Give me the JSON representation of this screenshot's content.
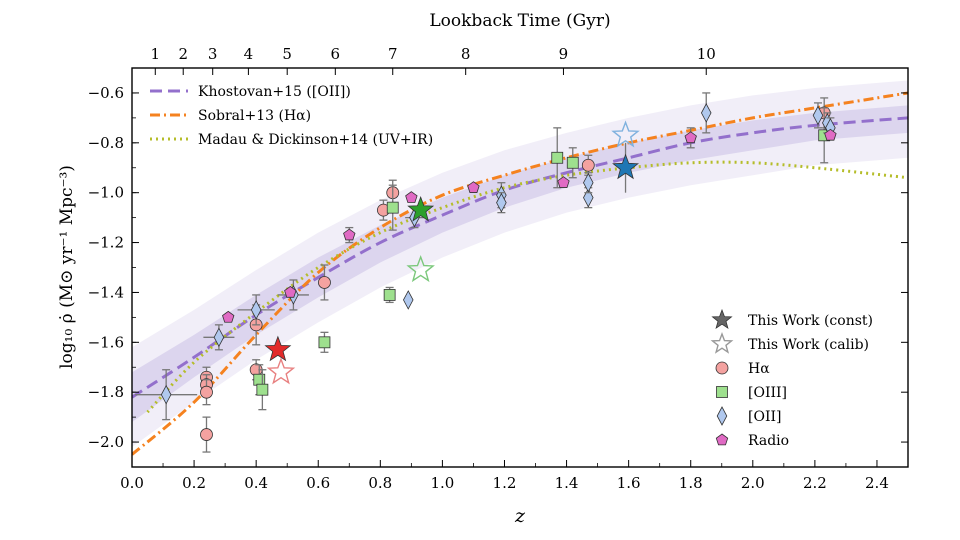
{
  "chart_data": {
    "type": "scatter",
    "xlabel": "z",
    "ylabel": "log₁₀ ρ̇ (M⊙ yr⁻¹ Mpc⁻³)",
    "top_axis_label": "Lookback Time (Gyr)",
    "xlim": [
      0.0,
      2.5
    ],
    "ylim": [
      -2.1,
      -0.5
    ],
    "x_ticks": [
      "0.0",
      "0.2",
      "0.4",
      "0.6",
      "0.8",
      "1.0",
      "1.2",
      "1.4",
      "1.6",
      "1.8",
      "2.0",
      "2.2",
      "2.4"
    ],
    "y_ticks": [
      "−2.0",
      "−1.8",
      "−1.6",
      "−1.4",
      "−1.2",
      "−1.0",
      "−0.8",
      "−0.6"
    ],
    "top_ticks": [
      {
        "label": "1",
        "z": 0.075
      },
      {
        "label": "2",
        "z": 0.165
      },
      {
        "label": "3",
        "z": 0.26
      },
      {
        "label": "4",
        "z": 0.375
      },
      {
        "label": "5",
        "z": 0.5
      },
      {
        "label": "6",
        "z": 0.655
      },
      {
        "label": "7",
        "z": 0.84
      },
      {
        "label": "8",
        "z": 1.075
      },
      {
        "label": "9",
        "z": 1.39
      },
      {
        "label": "10",
        "z": 1.85
      }
    ],
    "curves": [
      {
        "name": "Khostovan+15 ([OII])",
        "color": "#9370cc",
        "style": "dashed",
        "x": [
          0.0,
          0.2,
          0.4,
          0.6,
          0.8,
          1.0,
          1.2,
          1.4,
          1.6,
          1.8,
          2.0,
          2.2,
          2.5
        ],
        "y": [
          -1.82,
          -1.66,
          -1.49,
          -1.34,
          -1.2,
          -1.09,
          -0.99,
          -0.92,
          -0.86,
          -0.8,
          -0.76,
          -0.73,
          -0.7
        ]
      },
      {
        "name": "Sobral+13 (Hα)",
        "color": "#f5821f",
        "style": "dashdot",
        "x": [
          0.0,
          0.2,
          0.4,
          0.6,
          0.8,
          1.0,
          1.2,
          1.4,
          1.6,
          1.8,
          2.0,
          2.2,
          2.5
        ],
        "y": [
          -2.05,
          -1.84,
          -1.57,
          -1.32,
          -1.14,
          -1.01,
          -0.93,
          -0.86,
          -0.8,
          -0.75,
          -0.7,
          -0.66,
          -0.6
        ]
      },
      {
        "name": "Madau & Dickinson+14 (UV+IR)",
        "color": "#b5bd2a",
        "style": "dotted",
        "x": [
          0.05,
          0.2,
          0.4,
          0.6,
          0.8,
          1.0,
          1.2,
          1.4,
          1.6,
          1.8,
          2.0,
          2.2,
          2.5
        ],
        "y": [
          -1.88,
          -1.68,
          -1.48,
          -1.3,
          -1.16,
          -1.06,
          -0.98,
          -0.93,
          -0.9,
          -0.88,
          -0.88,
          -0.9,
          -0.94
        ]
      }
    ],
    "band": {
      "color": "#8a73c6",
      "x": [
        0.0,
        0.2,
        0.4,
        0.6,
        0.8,
        1.0,
        1.2,
        1.4,
        1.6,
        1.8,
        2.0,
        2.2,
        2.5
      ],
      "inner_lo": [
        -1.92,
        -1.74,
        -1.57,
        -1.42,
        -1.28,
        -1.16,
        -1.06,
        -0.98,
        -0.92,
        -0.87,
        -0.83,
        -0.79,
        -0.76
      ],
      "inner_hi": [
        -1.72,
        -1.57,
        -1.41,
        -1.26,
        -1.13,
        -1.02,
        -0.93,
        -0.86,
        -0.8,
        -0.75,
        -0.71,
        -0.68,
        -0.65
      ],
      "outer_lo": [
        -2.02,
        -1.84,
        -1.67,
        -1.52,
        -1.38,
        -1.26,
        -1.16,
        -1.08,
        -1.02,
        -0.97,
        -0.93,
        -0.89,
        -0.86
      ],
      "outer_hi": [
        -1.62,
        -1.47,
        -1.31,
        -1.16,
        -1.03,
        -0.92,
        -0.83,
        -0.76,
        -0.7,
        -0.65,
        -0.61,
        -0.58,
        -0.55
      ]
    },
    "series": [
      {
        "name": "Hα",
        "marker": "circle",
        "color": "#f4a2a0",
        "points": [
          [
            0.24,
            -1.97,
            0.07,
            0
          ],
          [
            0.24,
            -1.74,
            0.04,
            0
          ],
          [
            0.24,
            -1.77,
            0.04,
            0
          ],
          [
            0.24,
            -1.8,
            0.05,
            0
          ],
          [
            0.4,
            -1.53,
            0.08,
            0
          ],
          [
            0.4,
            -1.71,
            0.04,
            0
          ],
          [
            0.62,
            -1.36,
            0.07,
            0
          ],
          [
            0.81,
            -1.07,
            0.04,
            0
          ],
          [
            0.84,
            -1.0,
            0.05,
            0
          ],
          [
            1.47,
            -0.89,
            0.04,
            0
          ],
          [
            2.23,
            -0.68,
            0.06,
            0
          ]
        ]
      },
      {
        "name": "[OIII]",
        "marker": "square",
        "color": "#9ee08e",
        "points": [
          [
            0.41,
            -1.75,
            0.06,
            0
          ],
          [
            0.42,
            -1.79,
            0.08,
            0
          ],
          [
            0.62,
            -1.6,
            0.04,
            0
          ],
          [
            0.83,
            -1.41,
            0.03,
            0
          ],
          [
            0.84,
            -1.06,
            0.09,
            0
          ],
          [
            1.37,
            -0.86,
            0.12,
            0
          ],
          [
            1.42,
            -0.88,
            0.06,
            0
          ],
          [
            2.23,
            -0.77,
            0.11,
            0
          ]
        ]
      },
      {
        "name": "[OII]",
        "marker": "diamond",
        "color": "#b0c8ee",
        "points": [
          [
            0.11,
            -1.81,
            0.1,
            0.1
          ],
          [
            0.28,
            -1.58,
            0.05,
            0.05
          ],
          [
            0.4,
            -1.47,
            0.06,
            0.06
          ],
          [
            0.52,
            -1.41,
            0.06,
            0.05
          ],
          [
            0.89,
            -1.43,
            0,
            0
          ],
          [
            0.91,
            -1.1,
            0.04,
            0.03
          ],
          [
            1.19,
            -1.01,
            0.05,
            0
          ],
          [
            1.19,
            -1.04,
            0.04,
            0
          ],
          [
            1.47,
            -1.02,
            0.04,
            0
          ],
          [
            1.47,
            -0.96,
            0.04,
            0
          ],
          [
            1.85,
            -0.68,
            0.08,
            0
          ],
          [
            2.21,
            -0.69,
            0.05,
            0
          ],
          [
            2.24,
            -0.72,
            0.04,
            0
          ],
          [
            2.25,
            -0.74,
            0.04,
            0
          ]
        ]
      },
      {
        "name": "Radio",
        "marker": "pentagon",
        "color": "#e06ac4",
        "points": [
          [
            0.31,
            -1.5,
            0,
            0
          ],
          [
            0.51,
            -1.4,
            0,
            0
          ],
          [
            0.7,
            -1.17,
            0.03,
            0
          ],
          [
            0.9,
            -1.02,
            0,
            0
          ],
          [
            1.1,
            -0.98,
            0,
            0
          ],
          [
            1.39,
            -0.96,
            0,
            0
          ],
          [
            1.8,
            -0.78,
            0.04,
            0
          ],
          [
            2.25,
            -0.77,
            0,
            0
          ]
        ]
      }
    ],
    "this_work": [
      {
        "name": "This Work (const)",
        "color": "#e22a2a",
        "x": 0.47,
        "y": -1.63,
        "filled": true
      },
      {
        "name": "This Work (const)",
        "color": "#2ca02c",
        "x": 0.93,
        "y": -1.07,
        "filled": true
      },
      {
        "name": "This Work (const)",
        "color": "#1f77b4",
        "x": 1.59,
        "y": -0.9,
        "filled": true,
        "yerr": 0.1
      },
      {
        "name": "This Work (calib)",
        "color": "#e88080",
        "x": 0.48,
        "y": -1.72,
        "filled": false
      },
      {
        "name": "This Work (calib)",
        "color": "#7cc87c",
        "x": 0.93,
        "y": -1.31,
        "filled": false
      },
      {
        "name": "This Work (calib)",
        "color": "#7fb1de",
        "x": 1.59,
        "y": -0.77,
        "filled": false
      }
    ],
    "legend_lines": [
      {
        "label": "Khostovan+15 ([OII])",
        "color": "#9370cc",
        "style": "dashed"
      },
      {
        "label": "Sobral+13 (Hα)",
        "color": "#f5821f",
        "style": "dashdot"
      },
      {
        "label": "Madau & Dickinson+14 (UV+IR)",
        "color": "#b5bd2a",
        "style": "dotted"
      }
    ],
    "legend_markers": [
      {
        "label": "This Work (const)",
        "marker": "star",
        "color": "#666666",
        "filled": true
      },
      {
        "label": "This Work (calib)",
        "marker": "star",
        "color": "#999999",
        "filled": false
      },
      {
        "label": "Hα",
        "marker": "circle",
        "color": "#f4a2a0",
        "filled": true
      },
      {
        "label": "[OIII]",
        "marker": "square",
        "color": "#9ee08e",
        "filled": true
      },
      {
        "label": "[OII]",
        "marker": "diamond",
        "color": "#b0c8ee",
        "filled": true
      },
      {
        "label": "Radio",
        "marker": "pentagon",
        "color": "#e06ac4",
        "filled": true
      }
    ]
  }
}
